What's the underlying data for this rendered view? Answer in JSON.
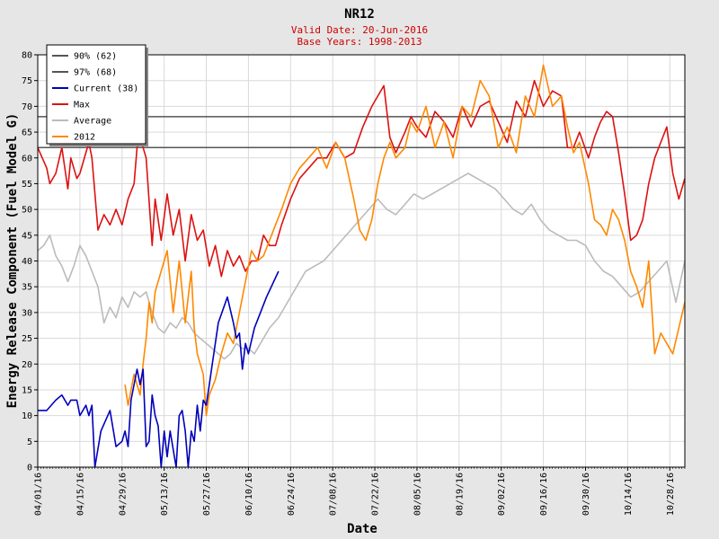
{
  "chart_data": {
    "type": "line",
    "title": "NR12",
    "subtitle": "Valid Date: 20-Jun-2016",
    "subtitle2": "Base Years: 1998-2013",
    "xlabel": "Date",
    "ylabel": "Energy Release Component (Fuel Model G)",
    "ylim": [
      0,
      80
    ],
    "xlim": [
      "04/01/16",
      "11/02/16"
    ],
    "yticks": [
      0,
      5,
      10,
      15,
      20,
      25,
      30,
      35,
      40,
      45,
      50,
      55,
      60,
      65,
      70,
      75,
      80
    ],
    "xticks": [
      "04/01/16",
      "04/15/16",
      "04/29/16",
      "05/13/16",
      "05/27/16",
      "06/10/16",
      "06/24/16",
      "07/08/16",
      "07/22/16",
      "08/05/16",
      "08/19/16",
      "09/02/16",
      "09/16/16",
      "09/30/16",
      "10/14/16",
      "10/28/16"
    ],
    "grid": true,
    "legend_position": "top-left",
    "thresholds": [
      {
        "name": "90% (62)",
        "value": 62,
        "color": "#555555"
      },
      {
        "name": "97% (68)",
        "value": 68,
        "color": "#555555"
      }
    ],
    "series": [
      {
        "name": "Current (38)",
        "color": "#0000bb",
        "x": [
          "04/01/16",
          "04/04/16",
          "04/07/16",
          "04/09/16",
          "04/11/16",
          "04/12/16",
          "04/14/16",
          "04/15/16",
          "04/17/16",
          "04/18/16",
          "04/19/16",
          "04/20/16",
          "04/22/16",
          "04/25/16",
          "04/27/16",
          "04/29/16",
          "04/30/16",
          "05/01/16",
          "05/02/16",
          "05/04/16",
          "05/05/16",
          "05/06/16",
          "05/07/16",
          "05/08/16",
          "05/09/16",
          "05/10/16",
          "05/11/16",
          "05/12/16",
          "05/13/16",
          "05/14/16",
          "05/15/16",
          "05/17/16",
          "05/18/16",
          "05/19/16",
          "05/20/16",
          "05/21/16",
          "05/22/16",
          "05/23/16",
          "05/24/16",
          "05/25/16",
          "05/26/16",
          "05/27/16",
          "05/28/16",
          "05/29/16",
          "05/31/16",
          "06/03/16",
          "06/05/16",
          "06/06/16",
          "06/07/16",
          "06/08/16",
          "06/09/16",
          "06/10/16",
          "06/12/16",
          "06/14/16",
          "06/16/16",
          "06/20/16"
        ],
        "y": [
          11,
          11,
          13,
          14,
          12,
          13,
          13,
          10,
          12,
          10,
          12,
          0,
          7,
          11,
          4,
          5,
          7,
          4,
          13,
          19,
          16,
          19,
          4,
          5,
          14,
          10,
          8,
          0,
          7,
          2,
          7,
          0,
          10,
          11,
          7,
          0,
          7,
          5,
          12,
          7,
          13,
          12,
          16,
          20,
          28,
          33,
          28,
          25,
          26,
          19,
          24,
          22,
          27,
          30,
          33,
          38
        ]
      },
      {
        "name": "Max",
        "color": "#dd1111",
        "x": [
          "04/01/16",
          "04/04/16",
          "04/05/16",
          "04/07/16",
          "04/09/16",
          "04/11/16",
          "04/12/16",
          "04/14/16",
          "04/15/16",
          "04/18/16",
          "04/19/16",
          "04/21/16",
          "04/23/16",
          "04/25/16",
          "04/27/16",
          "04/29/16",
          "05/01/16",
          "05/03/16",
          "05/04/16",
          "05/05/16",
          "05/07/16",
          "05/09/16",
          "05/10/16",
          "05/12/16",
          "05/14/16",
          "05/16/16",
          "05/18/16",
          "05/20/16",
          "05/22/16",
          "05/24/16",
          "05/26/16",
          "05/28/16",
          "05/30/16",
          "06/01/16",
          "06/03/16",
          "06/05/16",
          "06/07/16",
          "06/09/16",
          "06/11/16",
          "06/13/16",
          "06/15/16",
          "06/17/16",
          "06/19/16",
          "06/21/16",
          "06/24/16",
          "06/27/16",
          "06/30/16",
          "07/03/16",
          "07/06/16",
          "07/09/16",
          "07/12/16",
          "07/15/16",
          "07/18/16",
          "07/21/16",
          "07/23/16",
          "07/25/16",
          "07/27/16",
          "07/29/16",
          "08/01/16",
          "08/03/16",
          "08/05/16",
          "08/08/16",
          "08/11/16",
          "08/14/16",
          "08/17/16",
          "08/20/16",
          "08/23/16",
          "08/26/16",
          "08/29/16",
          "09/01/16",
          "09/04/16",
          "09/07/16",
          "09/10/16",
          "09/13/16",
          "09/16/16",
          "09/19/16",
          "09/22/16",
          "09/24/16",
          "09/26/16",
          "09/28/16",
          "10/01/16",
          "10/03/16",
          "10/05/16",
          "10/07/16",
          "10/09/16",
          "10/11/16",
          "10/13/16",
          "10/15/16",
          "10/17/16",
          "10/19/16",
          "10/21/16",
          "10/23/16",
          "10/25/16",
          "10/27/16",
          "10/29/16",
          "10/31/16",
          "11/02/16"
        ],
        "y": [
          62,
          58,
          55,
          57,
          62,
          54,
          60,
          56,
          57,
          63,
          60,
          46,
          49,
          47,
          50,
          47,
          52,
          55,
          62,
          64,
          60,
          43,
          52,
          44,
          53,
          45,
          50,
          40,
          49,
          44,
          46,
          39,
          43,
          37,
          42,
          39,
          41,
          38,
          40,
          40,
          45,
          43,
          43,
          47,
          52,
          56,
          58,
          60,
          60,
          63,
          60,
          61,
          66,
          70,
          72,
          74,
          64,
          61,
          65,
          68,
          66,
          64,
          69,
          67,
          64,
          70,
          66,
          70,
          71,
          67,
          63,
          71,
          68,
          75,
          70,
          73,
          72,
          62,
          62,
          65,
          60,
          64,
          67,
          69,
          68,
          61,
          53,
          44,
          45,
          48,
          55,
          60,
          63,
          66,
          57,
          52,
          56
        ]
      },
      {
        "name": "Average",
        "color": "#bbbbbb",
        "x": [
          "04/01/16",
          "04/03/16",
          "04/05/16",
          "04/07/16",
          "04/09/16",
          "04/11/16",
          "04/13/16",
          "04/15/16",
          "04/17/16",
          "04/19/16",
          "04/21/16",
          "04/23/16",
          "04/25/16",
          "04/27/16",
          "04/29/16",
          "05/01/16",
          "05/03/16",
          "05/05/16",
          "05/07/16",
          "05/09/16",
          "05/11/16",
          "05/13/16",
          "05/15/16",
          "05/17/16",
          "05/19/16",
          "05/21/16",
          "05/23/16",
          "05/25/16",
          "05/27/16",
          "05/29/16",
          "05/31/16",
          "06/02/16",
          "06/04/16",
          "06/06/16",
          "06/08/16",
          "06/10/16",
          "06/12/16",
          "06/14/16",
          "06/17/16",
          "06/20/16",
          "06/23/16",
          "06/26/16",
          "06/29/16",
          "07/02/16",
          "07/05/16",
          "07/08/16",
          "07/11/16",
          "07/14/16",
          "07/17/16",
          "07/20/16",
          "07/23/16",
          "07/26/16",
          "07/29/16",
          "08/01/16",
          "08/04/16",
          "08/07/16",
          "08/10/16",
          "08/13/16",
          "08/16/16",
          "08/19/16",
          "08/22/16",
          "08/25/16",
          "08/28/16",
          "08/31/16",
          "09/03/16",
          "09/06/16",
          "09/09/16",
          "09/12/16",
          "09/15/16",
          "09/18/16",
          "09/21/16",
          "09/24/16",
          "09/27/16",
          "09/30/16",
          "10/03/16",
          "10/06/16",
          "10/09/16",
          "10/12/16",
          "10/15/16",
          "10/18/16",
          "10/21/16",
          "10/24/16",
          "10/27/16",
          "10/30/16",
          "11/02/16"
        ],
        "y": [
          42,
          43,
          45,
          41,
          39,
          36,
          39,
          43,
          41,
          38,
          35,
          28,
          31,
          29,
          33,
          31,
          34,
          33,
          34,
          30,
          27,
          26,
          28,
          27,
          29,
          28,
          26,
          25,
          24,
          23,
          22,
          21,
          22,
          24,
          23,
          23,
          22,
          24,
          27,
          29,
          32,
          35,
          38,
          39,
          40,
          42,
          44,
          46,
          48,
          50,
          52,
          50,
          49,
          51,
          53,
          52,
          53,
          54,
          55,
          56,
          57,
          56,
          55,
          54,
          52,
          50,
          49,
          51,
          48,
          46,
          45,
          44,
          44,
          43,
          40,
          38,
          37,
          35,
          33,
          34,
          36,
          38,
          40,
          32,
          40
        ]
      },
      {
        "name": "2012",
        "color": "#ff8800",
        "x": [
          "04/30/16",
          "05/01/16",
          "05/03/16",
          "05/05/16",
          "05/06/16",
          "05/07/16",
          "05/08/16",
          "05/09/16",
          "05/10/16",
          "05/12/16",
          "05/14/16",
          "05/16/16",
          "05/18/16",
          "05/20/16",
          "05/21/16",
          "05/22/16",
          "05/23/16",
          "05/24/16",
          "05/26/16",
          "05/27/16",
          "05/28/16",
          "05/30/16",
          "06/01/16",
          "06/03/16",
          "06/05/16",
          "06/07/16",
          "06/09/16",
          "06/11/16",
          "06/13/16",
          "06/15/16",
          "06/17/16",
          "06/19/16",
          "06/21/16",
          "06/24/16",
          "06/27/16",
          "06/30/16",
          "07/03/16",
          "07/06/16",
          "07/09/16",
          "07/12/16",
          "07/15/16",
          "07/17/16",
          "07/19/16",
          "07/21/16",
          "07/23/16",
          "07/25/16",
          "07/27/16",
          "07/29/16",
          "08/01/16",
          "08/03/16",
          "08/05/16",
          "08/08/16",
          "08/11/16",
          "08/14/16",
          "08/17/16",
          "08/20/16",
          "08/23/16",
          "08/26/16",
          "08/29/16",
          "09/01/16",
          "09/04/16",
          "09/07/16",
          "09/10/16",
          "09/13/16",
          "09/16/16",
          "09/19/16",
          "09/22/16",
          "09/24/16",
          "09/26/16",
          "09/28/16",
          "10/01/16",
          "10/03/16",
          "10/05/16",
          "10/07/16",
          "10/09/16",
          "10/11/16",
          "10/13/16",
          "10/15/16",
          "10/17/16",
          "10/19/16",
          "10/21/16",
          "10/23/16",
          "10/25/16",
          "10/27/16",
          "10/29/16",
          "10/31/16",
          "11/02/16"
        ],
        "y": [
          16,
          12,
          18,
          14,
          20,
          25,
          32,
          28,
          34,
          38,
          42,
          30,
          40,
          28,
          33,
          38,
          27,
          22,
          18,
          10,
          14,
          17,
          22,
          26,
          24,
          30,
          36,
          42,
          40,
          41,
          44,
          47,
          50,
          55,
          58,
          60,
          62,
          58,
          63,
          60,
          52,
          46,
          44,
          48,
          55,
          60,
          63,
          60,
          62,
          67,
          65,
          70,
          62,
          67,
          60,
          70,
          68,
          75,
          72,
          62,
          66,
          61,
          72,
          68,
          78,
          70,
          72,
          66,
          61,
          63,
          55,
          48,
          47,
          45,
          50,
          48,
          44,
          38,
          35,
          31,
          40,
          22,
          26,
          24,
          22,
          27,
          32
        ]
      }
    ]
  }
}
